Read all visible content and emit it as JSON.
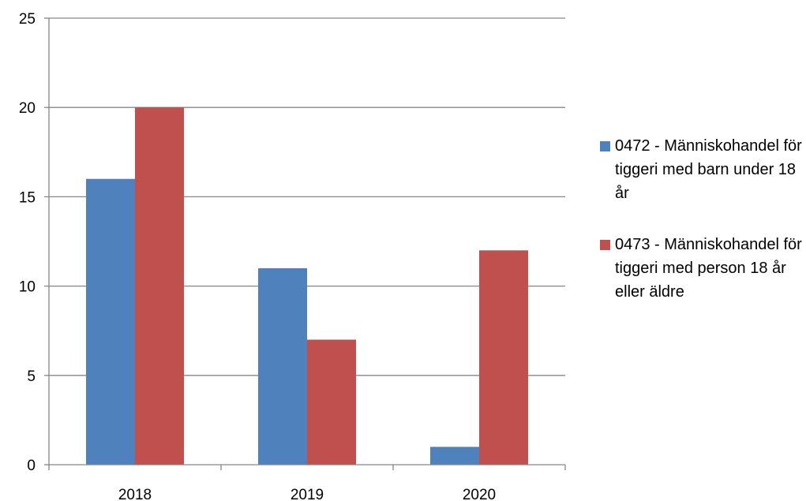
{
  "chart_data": {
    "type": "bar",
    "title": "",
    "xlabel": "",
    "ylabel": "",
    "categories": [
      "2018",
      "2019",
      "2020"
    ],
    "series": [
      {
        "name": "0472 - Människohandel för tiggeri med barn under 18 år",
        "values": [
          16,
          11,
          1
        ],
        "color": "#4F81BD"
      },
      {
        "name": "0473 - Människohandel för tiggeri med person 18 år eller äldre",
        "values": [
          20,
          7,
          12
        ],
        "color": "#C0504D"
      }
    ],
    "ylim": [
      0,
      25
    ],
    "yticks": [
      "0",
      "5",
      "10",
      "15",
      "20",
      "25"
    ],
    "grid": true,
    "legend_position": "right"
  }
}
